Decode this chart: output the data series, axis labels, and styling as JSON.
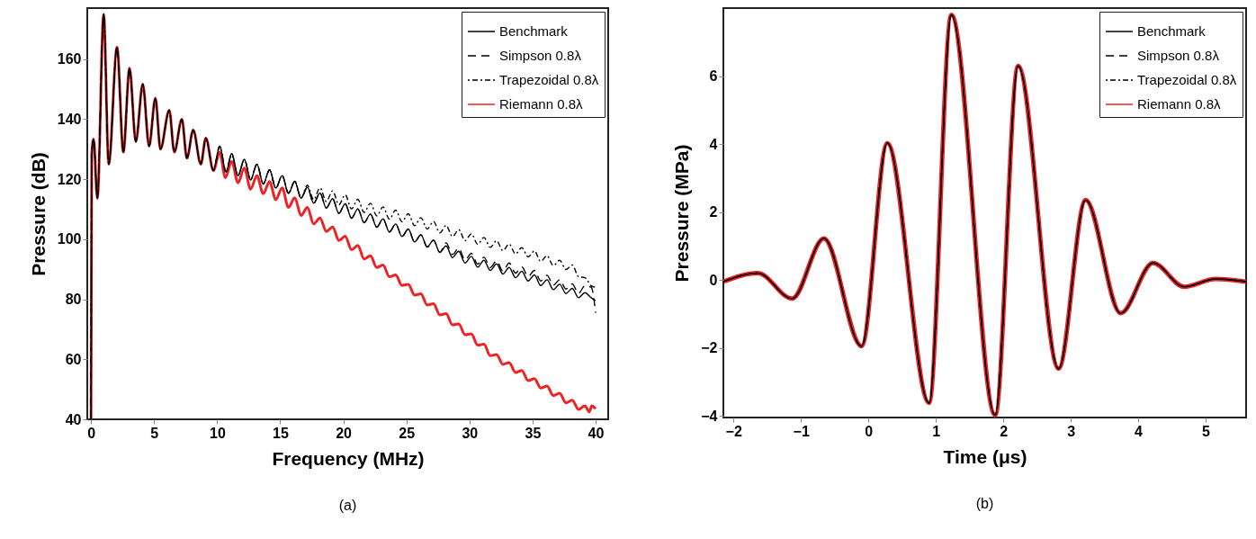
{
  "chart_data": [
    {
      "type": "line",
      "xlabel": "Frequency (MHz)",
      "ylabel": "Pressure (dB)",
      "xlim": [
        -0.3,
        41
      ],
      "ylim": [
        40,
        177
      ],
      "xticks": [
        0,
        5,
        10,
        15,
        20,
        25,
        30,
        35,
        40
      ],
      "yticks": [
        40,
        60,
        80,
        100,
        120,
        140,
        160
      ],
      "grid": false,
      "legend": "top right",
      "annotations": [
        "(a)"
      ],
      "series": [
        {
          "name": "Benchmark",
          "color": "#000000",
          "line_style": "solid",
          "x": [
            0,
            0.05,
            0.2,
            0.5,
            1.0,
            1.4,
            2.06,
            2.56,
            3.05,
            3.55,
            4.1,
            4.6,
            5.1,
            5.5,
            6.2,
            6.6,
            7.2,
            7.6,
            8.1,
            8.7,
            9.1,
            9.7,
            10.2,
            10.7,
            11.15,
            11.65,
            12.15,
            12.65,
            13.15,
            13.65,
            14.15,
            14.65,
            15.15,
            15.65,
            16.15,
            16.65,
            17.15,
            17.65,
            18.15,
            18.65,
            19.15,
            19.65,
            20.15,
            20.65,
            21.15,
            21.65,
            22.15,
            22.65,
            23.15,
            23.65,
            24.15,
            24.65,
            25.15,
            25.65,
            26.15,
            26.65,
            27.15,
            27.65,
            28.15,
            28.65,
            29.15,
            29.65,
            30.15,
            30.65,
            31.15,
            31.65,
            32.15,
            32.65,
            33.15,
            33.65,
            34.15,
            34.65,
            35.15,
            35.65,
            36.15,
            36.65,
            37.15,
            37.65,
            38.15,
            38.65,
            39.15,
            39.65,
            40
          ],
          "values": [
            40,
            128,
            133.4,
            113.6,
            175,
            125,
            164,
            129,
            157,
            132.5,
            151.7,
            131,
            147,
            130,
            143,
            129,
            140,
            127,
            136.4,
            125,
            133.7,
            122.9,
            131,
            122.4,
            128.5,
            121.2,
            126.6,
            119.8,
            125,
            118.4,
            123.1,
            117,
            121.2,
            115.3,
            119.3,
            113.7,
            117.3,
            112,
            115.4,
            110.4,
            113.5,
            108.6,
            111.8,
            107,
            110.1,
            105.5,
            108.4,
            104,
            106.8,
            102.4,
            105.1,
            100.9,
            103.4,
            99.1,
            101.5,
            97.4,
            99.7,
            95.6,
            97.8,
            93.9,
            96,
            92.1,
            94.3,
            90.7,
            93,
            89.6,
            91.8,
            88.4,
            90.6,
            87.2,
            89.3,
            86.1,
            88.1,
            84.6,
            86.5,
            83.2,
            85,
            81.9,
            83.6,
            80.5,
            82.2,
            80.5,
            79.5
          ]
        },
        {
          "name": "Simpson 0.8λ",
          "color": "#000000",
          "line_style": "dashed",
          "x": [
            0,
            0.05,
            0.2,
            0.5,
            1.0,
            1.4,
            2.06,
            2.56,
            3.05,
            3.55,
            4.1,
            4.6,
            5.1,
            5.5,
            6.2,
            6.6,
            7.2,
            7.6,
            8.1,
            8.7,
            9.1,
            9.7,
            10.2,
            10.7,
            11.15,
            11.65,
            12.15,
            12.65,
            13.15,
            13.65,
            14.15,
            14.65,
            15.15,
            15.65,
            16.15,
            16.65,
            17.15,
            17.65,
            18.15,
            18.65,
            19.15,
            19.65,
            20.15,
            20.65,
            21.15,
            21.65,
            22.15,
            22.65,
            23.15,
            23.65,
            24.15,
            24.65,
            25.15,
            25.65,
            26.15,
            26.65,
            27.15,
            27.65,
            28.15,
            28.65,
            29.15,
            29.65,
            30.15,
            30.65,
            31.15,
            31.65,
            32.15,
            32.65,
            33.15,
            33.65,
            34.15,
            34.65,
            35.15,
            35.65,
            36.15,
            36.65,
            37.15,
            37.65,
            38.15,
            38.65,
            39.15,
            39.65,
            40
          ],
          "values": [
            40,
            128,
            133.4,
            113.6,
            175,
            125,
            164,
            129,
            157,
            132.5,
            151.7,
            131,
            147,
            130,
            143,
            129,
            140,
            127,
            136.4,
            125,
            133.7,
            122.9,
            131,
            122.4,
            128.5,
            121.2,
            126.6,
            119.8,
            125,
            118.4,
            123.1,
            117,
            121.2,
            115.3,
            119.3,
            113.7,
            117.3,
            112,
            115.4,
            110.4,
            113.5,
            108.6,
            111.8,
            107,
            110.1,
            105.5,
            108.4,
            104,
            106.8,
            102.4,
            105.1,
            100.9,
            103.4,
            99.1,
            101.5,
            97.4,
            99.7,
            95.6,
            98.8,
            94.9,
            97,
            93.1,
            95.3,
            91.7,
            94,
            90.6,
            92.8,
            89.4,
            92.1,
            88.7,
            90.8,
            87.6,
            89.6,
            86.1,
            88,
            84.7,
            86.5,
            83.4,
            85.1,
            82,
            84.5,
            84,
            75.5
          ]
        },
        {
          "name": "Trapezoidal 0.8λ",
          "color": "#000000",
          "line_style": "dashdot",
          "x": [
            0,
            0.05,
            0.2,
            0.5,
            1.0,
            1.4,
            2.06,
            2.56,
            3.05,
            3.55,
            4.1,
            4.6,
            5.1,
            5.5,
            6.2,
            6.6,
            7.2,
            7.6,
            8.1,
            8.7,
            9.1,
            9.7,
            10.2,
            10.7,
            11.15,
            11.65,
            12.15,
            12.65,
            13.15,
            13.65,
            14.15,
            14.65,
            15.15,
            15.65,
            16.15,
            16.65,
            17.15,
            17.65,
            18.15,
            18.65,
            19.15,
            19.65,
            20.15,
            20.65,
            21.15,
            21.65,
            22.15,
            22.65,
            23.15,
            23.65,
            24.15,
            24.65,
            25.15,
            25.65,
            26.15,
            26.65,
            27.15,
            27.65,
            28.15,
            28.65,
            29.15,
            29.65,
            30.15,
            30.65,
            31.15,
            31.65,
            32.15,
            32.65,
            33.15,
            33.65,
            34.15,
            34.65,
            35.15,
            35.65,
            36.15,
            36.65,
            37.15,
            37.65,
            38.15,
            38.65,
            39.15,
            39.65,
            40
          ],
          "values": [
            40,
            128,
            133.4,
            113.6,
            175,
            125,
            164,
            129,
            157,
            132.5,
            151.7,
            131,
            147,
            130,
            143,
            129,
            140,
            127,
            136.4,
            125,
            133.7,
            122.9,
            131,
            122.4,
            128.5,
            121.2,
            126.6,
            119.8,
            125,
            118.4,
            123.1,
            117,
            121.2,
            115.3,
            119.3,
            113.7,
            118,
            113.2,
            117.1,
            112.6,
            116.1,
            111.5,
            114.8,
            110.1,
            113.3,
            108.9,
            112,
            107.8,
            110.8,
            106.7,
            109.7,
            105.8,
            108.5,
            104.5,
            107.2,
            103.4,
            105.9,
            102.1,
            104.6,
            100.9,
            103.2,
            99.5,
            101.8,
            98.3,
            100.6,
            97.3,
            99.5,
            96.2,
            98.4,
            95.1,
            97.2,
            94.1,
            96.1,
            92.6,
            94.5,
            91.2,
            93,
            89.9,
            91.4,
            87.5,
            87.2,
            84.5,
            84
          ]
        },
        {
          "name": "Riemann 0.8λ",
          "color": "#ee2225",
          "line_style": "solid",
          "x": [
            0,
            0.05,
            0.2,
            0.5,
            1.0,
            1.4,
            2.06,
            2.56,
            3.05,
            3.55,
            4.1,
            4.6,
            5.1,
            5.5,
            6.2,
            6.6,
            7.2,
            7.6,
            8.1,
            8.7,
            9.1,
            9.7,
            10.2,
            10.65,
            11.15,
            11.65,
            12.15,
            12.65,
            13.15,
            13.65,
            14.15,
            14.65,
            15.15,
            15.65,
            16.15,
            16.65,
            17.15,
            17.65,
            18.15,
            18.65,
            19.15,
            19.65,
            20.15,
            20.65,
            21.15,
            21.65,
            22.15,
            22.65,
            23.15,
            23.65,
            24.15,
            24.65,
            25.15,
            25.65,
            26.15,
            26.65,
            27.15,
            27.65,
            28.15,
            28.65,
            29.15,
            29.65,
            30.15,
            30.65,
            31.15,
            31.65,
            32.15,
            32.65,
            33.15,
            33.65,
            34.15,
            34.65,
            35.15,
            35.65,
            36.15,
            36.65,
            37.15,
            37.65,
            38.15,
            38.65,
            39.15,
            39.5,
            39.7,
            40
          ],
          "values": [
            40,
            128,
            133.4,
            113.6,
            175,
            125,
            164,
            129,
            157,
            132.5,
            151.7,
            131,
            147,
            130,
            143,
            129,
            140,
            127,
            136.4,
            125,
            133.7,
            122.9,
            129,
            120.5,
            125.9,
            118.8,
            123.7,
            116.7,
            121.2,
            115.2,
            119.2,
            113.2,
            117.1,
            110.6,
            113.8,
            107.9,
            110.6,
            105.1,
            107.1,
            102.6,
            104.1,
            99.6,
            101,
            96.5,
            97.9,
            93.4,
            94.5,
            90.6,
            91.4,
            87.5,
            88.1,
            84.6,
            85,
            81.4,
            81.8,
            78.1,
            78.5,
            74.8,
            75.2,
            71.5,
            71.8,
            68.2,
            68.5,
            64.7,
            65,
            61.2,
            61.6,
            58.3,
            58.9,
            55.6,
            56.3,
            52.9,
            53.6,
            50.4,
            51.1,
            47.9,
            48.7,
            45.5,
            46.4,
            43.3,
            44.5,
            42.5,
            44.5,
            43.5
          ]
        }
      ]
    },
    {
      "type": "line",
      "xlabel": "Time (μs)",
      "ylabel": "Pressure (MPa)",
      "xlim": [
        -2.15,
        5.6
      ],
      "ylim": [
        -4.05,
        8
      ],
      "xticks": [
        -2,
        -1,
        0,
        1,
        2,
        3,
        4,
        5
      ],
      "yticks": [
        -4,
        -2,
        0,
        2,
        4,
        6
      ],
      "grid": false,
      "legend": "top right",
      "annotations": [
        "(b)"
      ],
      "x": [
        -2.15,
        -1.64,
        -1.13,
        -0.66,
        -0.1,
        0.28,
        0.9,
        1.23,
        1.88,
        2.22,
        2.82,
        3.22,
        3.74,
        4.22,
        4.68,
        5.15,
        5.6
      ],
      "series": [
        {
          "name": "Benchmark",
          "color": "#000000",
          "line_style": "solid",
          "values": [
            -0.05,
            0.2,
            -0.55,
            1.22,
            -1.95,
            4.03,
            -3.62,
            7.8,
            -3.98,
            6.3,
            -2.61,
            2.35,
            -0.98,
            0.5,
            -0.2,
            0.03,
            -0.05
          ]
        },
        {
          "name": "Simpson 0.8λ",
          "color": "#000000",
          "line_style": "dashed",
          "values": [
            -0.05,
            0.2,
            -0.55,
            1.22,
            -1.95,
            4.03,
            -3.62,
            7.8,
            -3.98,
            6.3,
            -2.61,
            2.35,
            -0.98,
            0.5,
            -0.2,
            0.03,
            -0.05
          ]
        },
        {
          "name": "Trapezoidal 0.8λ",
          "color": "#000000",
          "line_style": "dashdot",
          "values": [
            -0.05,
            0.2,
            -0.55,
            1.22,
            -1.95,
            4.03,
            -3.62,
            7.8,
            -3.98,
            6.3,
            -2.61,
            2.35,
            -0.98,
            0.5,
            -0.2,
            0.03,
            -0.05
          ]
        },
        {
          "name": "Riemann 0.8λ",
          "color": "#ee2225",
          "line_style": "solid",
          "values": [
            -0.05,
            0.2,
            -0.55,
            1.22,
            -1.95,
            4.03,
            -3.62,
            7.8,
            -3.98,
            6.3,
            -2.61,
            2.35,
            -0.98,
            0.5,
            -0.2,
            0.03,
            -0.05
          ]
        }
      ]
    }
  ]
}
